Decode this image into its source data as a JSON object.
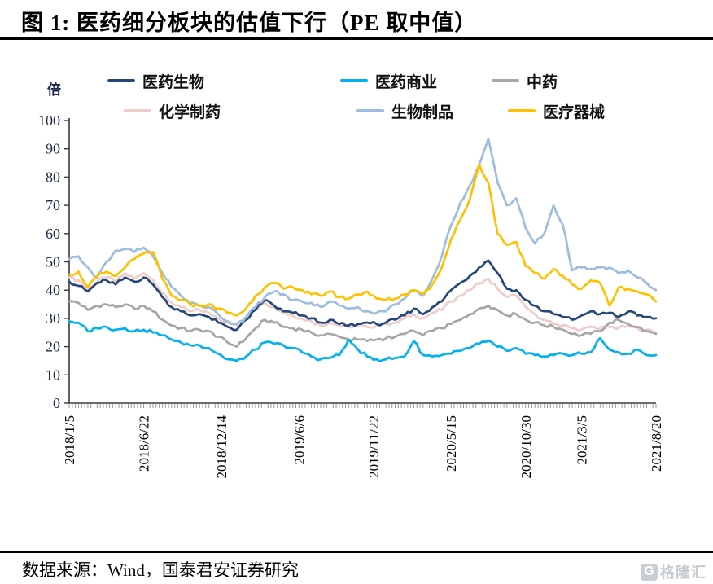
{
  "title": "图 1:  医药细分板块的估值下行（PE 取中值）",
  "unit_label": "倍",
  "footer": {
    "source_text": "数据来源：Wind，国泰君安证券研究"
  },
  "logo": {
    "icon": "G",
    "text": "格隆汇"
  },
  "colors": {
    "axis": "#3a3a3a",
    "minor_tick": "#9a9a9a",
    "y_tick_text": "#1b2a4a",
    "x_tick_text": "#000000"
  },
  "chart_data": {
    "type": "line",
    "title": "医药细分板块的估值下行（PE 取中值）",
    "ylabel": "倍",
    "ylim": [
      0,
      100
    ],
    "ytick_step": 10,
    "x_total_weeks": 189,
    "sample_interval_weeks": 3,
    "xtick_labels": [
      "2018/1/5",
      "2018/6/22",
      "2018/12/14",
      "2019/6/6",
      "2019/11/22",
      "2020/5/15",
      "2020/10/30",
      "2021/3/5",
      "2021/8/20"
    ],
    "xtick_weeks": [
      0,
      24,
      49,
      74,
      98,
      123,
      147,
      165,
      189
    ],
    "legend_rows": [
      [
        "医药生物",
        "医药商业",
        "中药"
      ],
      [
        "化学制药",
        "生物制品",
        "医疗器械"
      ]
    ],
    "series": [
      {
        "name": "化学制药",
        "color": "#F0CCC9",
        "values": [
          44.5,
          43.5,
          40.5,
          43,
          44.5,
          43,
          46,
          44,
          46,
          43.5,
          39,
          35.5,
          34,
          32.5,
          33,
          32,
          30,
          28.5,
          27.5,
          30.5,
          33.5,
          35.5,
          34,
          32,
          31,
          30,
          29,
          27.5,
          28.5,
          27.5,
          27,
          27.5,
          27,
          27.5,
          28,
          28.5,
          30,
          31.5,
          30,
          32,
          33,
          36,
          38,
          40,
          42.5,
          44,
          40.5,
          37.5,
          38,
          34,
          31.5,
          29.5,
          28,
          27.5,
          26.5,
          26,
          27,
          26.5,
          27,
          26.5,
          27.5,
          26.5,
          26,
          25
        ]
      },
      {
        "name": "中药",
        "color": "#A6A6A6",
        "values": [
          36,
          35.5,
          33,
          34.5,
          35,
          34,
          35,
          33.5,
          34.5,
          32.5,
          29.5,
          27.5,
          26.5,
          25.5,
          26,
          25.5,
          23.5,
          21.5,
          20,
          23,
          26.5,
          29.5,
          28.5,
          27,
          26.5,
          26,
          25,
          24,
          24.5,
          23.5,
          22.5,
          22.5,
          22,
          22.5,
          23,
          23.5,
          24.5,
          25.5,
          24,
          25.5,
          26.5,
          28,
          29.5,
          31.5,
          33.5,
          34.5,
          33,
          31,
          31.5,
          29.5,
          28.5,
          27.5,
          27,
          26,
          24.5,
          24,
          24.5,
          25.5,
          28.5,
          29.5,
          28,
          27,
          25.5,
          24.5
        ]
      },
      {
        "name": "医药生物",
        "color": "#24477B",
        "values": [
          43,
          41.5,
          39.5,
          42.5,
          43.5,
          42,
          44.5,
          43,
          44.5,
          42,
          37.5,
          34,
          32.5,
          31,
          31.5,
          30.5,
          28.5,
          27,
          26,
          29.5,
          33,
          36.5,
          34.5,
          32.5,
          32,
          31,
          30,
          28.5,
          29.5,
          28,
          27.5,
          28,
          28.5,
          28,
          28.5,
          29.5,
          31,
          33.5,
          31.5,
          34,
          36,
          40,
          42.5,
          45,
          48,
          50.5,
          46,
          40.5,
          40,
          36.5,
          34.5,
          32.5,
          31.5,
          30.5,
          29.5,
          31,
          32.5,
          31.5,
          32,
          30.5,
          32.5,
          31,
          30.5,
          30
        ]
      },
      {
        "name": "医药商业",
        "color": "#00B0F0",
        "values": [
          29,
          28.5,
          25.5,
          26.5,
          27,
          26,
          26.5,
          25.5,
          26,
          25,
          24,
          22.5,
          21.5,
          20.5,
          20.5,
          19.5,
          17.5,
          15.5,
          15,
          16.5,
          19,
          21.5,
          21,
          20.5,
          19.5,
          18,
          16.5,
          15.5,
          16,
          17,
          22.5,
          19,
          16.5,
          15.5,
          15.5,
          16,
          16.5,
          22,
          17,
          16.5,
          17,
          17.5,
          18.5,
          19.5,
          21,
          22,
          20,
          18.5,
          19.5,
          17.5,
          17,
          16.5,
          17,
          17.5,
          17,
          17.5,
          18,
          23,
          19,
          18,
          17.5,
          19,
          17,
          17
        ]
      },
      {
        "name": "生物制品",
        "color": "#9EBCDE",
        "values": [
          51,
          52,
          48,
          44.5,
          50,
          54,
          54.5,
          53.5,
          55,
          52,
          46,
          41,
          38,
          35.5,
          34.5,
          34,
          31.5,
          29,
          28,
          30.5,
          34,
          37.5,
          39.5,
          38.5,
          36.5,
          36,
          35.5,
          34,
          36,
          34.5,
          33.5,
          34,
          32.5,
          32,
          32.5,
          35,
          37,
          40,
          38,
          44,
          52,
          63,
          71,
          77,
          84,
          93.5,
          78,
          70,
          72.5,
          62,
          56.5,
          60,
          70,
          63,
          47,
          48,
          47.5,
          48,
          48,
          46,
          47,
          44.5,
          42.5,
          40
        ]
      },
      {
        "name": "医疗器械",
        "color": "#FFC000",
        "values": [
          45.5,
          46.5,
          41,
          45,
          46.5,
          45,
          48,
          51,
          53,
          53.5,
          44,
          38,
          36.5,
          35,
          34.5,
          35,
          33.5,
          32,
          31,
          33.5,
          38,
          41,
          42.5,
          40.5,
          41,
          40,
          38.5,
          38,
          39.5,
          37.5,
          37,
          38.5,
          39.5,
          37,
          36.5,
          37,
          38.5,
          40,
          38.5,
          42,
          48,
          58,
          65,
          72,
          84.5,
          78,
          60,
          56,
          57,
          48.5,
          46,
          44,
          47.5,
          45,
          42,
          40.5,
          43.5,
          42.5,
          34.5,
          41,
          40.5,
          39.5,
          38.5,
          36
        ]
      }
    ]
  }
}
